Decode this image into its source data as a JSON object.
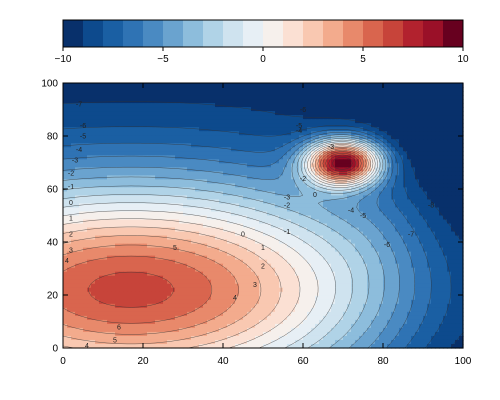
{
  "chart_data": {
    "type": "heatmap",
    "subtype": "filled-contour",
    "title": "",
    "xlabel": "",
    "ylabel": "",
    "xlim": [
      0,
      100
    ],
    "ylim": [
      0,
      100
    ],
    "x_ticks": [
      "0",
      "20",
      "40",
      "60",
      "80",
      "100"
    ],
    "y_ticks": [
      "0",
      "20",
      "40",
      "60",
      "80",
      "100"
    ],
    "grid": false,
    "colormap": "diverging blue-white-red",
    "colorbar": {
      "position": "top",
      "range": [
        -10,
        10
      ],
      "levels": [
        -10,
        -9,
        -8,
        -7,
        -6,
        -5,
        -4,
        -3,
        -2,
        -1,
        0,
        1,
        2,
        3,
        4,
        5,
        6,
        7,
        8,
        9,
        10
      ],
      "ticks": [
        "−10",
        "−5",
        "0",
        "5",
        "10"
      ],
      "colors": [
        "#08306b",
        "#0d4a8d",
        "#1a5fa3",
        "#2f73b4",
        "#4a8ac2",
        "#6aa3cf",
        "#8dbddc",
        "#b0d3e7",
        "#cfe3ef",
        "#e7eff5",
        "#f6f0ec",
        "#fbe0d3",
        "#f9c8b1",
        "#f3ab8d",
        "#e8896b",
        "#d9654e",
        "#c7443a",
        "#b2222e",
        "#9a1028",
        "#67001f"
      ]
    },
    "surface_features": [
      {
        "kind": "peak",
        "center": [
          70,
          70
        ],
        "value": 9.5
      },
      {
        "kind": "broad-maximum",
        "center": [
          20,
          22
        ],
        "value": 6.4
      },
      {
        "kind": "minimum-region",
        "location": "upper-right corner",
        "value": -10
      }
    ],
    "contour_labels": [
      {
        "text": "-7",
        "x": 4,
        "y": 92
      },
      {
        "text": "-6",
        "x": 5,
        "y": 84
      },
      {
        "text": "-5",
        "x": 5,
        "y": 80
      },
      {
        "text": "-4",
        "x": 4,
        "y": 75
      },
      {
        "text": "-3",
        "x": 3,
        "y": 71
      },
      {
        "text": "-2",
        "x": 2,
        "y": 66
      },
      {
        "text": "-1",
        "x": 2,
        "y": 61
      },
      {
        "text": "0",
        "x": 2,
        "y": 55
      },
      {
        "text": "1",
        "x": 2,
        "y": 49
      },
      {
        "text": "2",
        "x": 2,
        "y": 43
      },
      {
        "text": "3",
        "x": 2,
        "y": 37
      },
      {
        "text": "4",
        "x": 1,
        "y": 33
      },
      {
        "text": "5",
        "x": 28,
        "y": 38
      },
      {
        "text": "6",
        "x": 14,
        "y": 8
      },
      {
        "text": "5",
        "x": 13,
        "y": 3
      },
      {
        "text": "4",
        "x": 6,
        "y": 1
      },
      {
        "text": "4",
        "x": 43,
        "y": 19
      },
      {
        "text": "3",
        "x": 48,
        "y": 24
      },
      {
        "text": "2",
        "x": 50,
        "y": 31
      },
      {
        "text": "1",
        "x": 50,
        "y": 38
      },
      {
        "text": "0",
        "x": 45,
        "y": 43
      },
      {
        "text": "-1",
        "x": 56,
        "y": 44
      },
      {
        "text": "-2",
        "x": 56,
        "y": 54
      },
      {
        "text": "-3",
        "x": 56,
        "y": 57
      },
      {
        "text": "-4",
        "x": 72,
        "y": 52
      },
      {
        "text": "-5",
        "x": 75,
        "y": 50
      },
      {
        "text": "-6",
        "x": 81,
        "y": 39
      },
      {
        "text": "-7",
        "x": 87,
        "y": 43
      },
      {
        "text": "-8",
        "x": 92,
        "y": 54
      },
      {
        "text": "-3",
        "x": 67,
        "y": 76
      },
      {
        "text": "0",
        "x": 63,
        "y": 58
      },
      {
        "text": "-4",
        "x": 59,
        "y": 82
      },
      {
        "text": "-6",
        "x": 60,
        "y": 90
      },
      {
        "text": "-5",
        "x": 59,
        "y": 84
      },
      {
        "text": "-2",
        "x": 60,
        "y": 64
      }
    ]
  }
}
